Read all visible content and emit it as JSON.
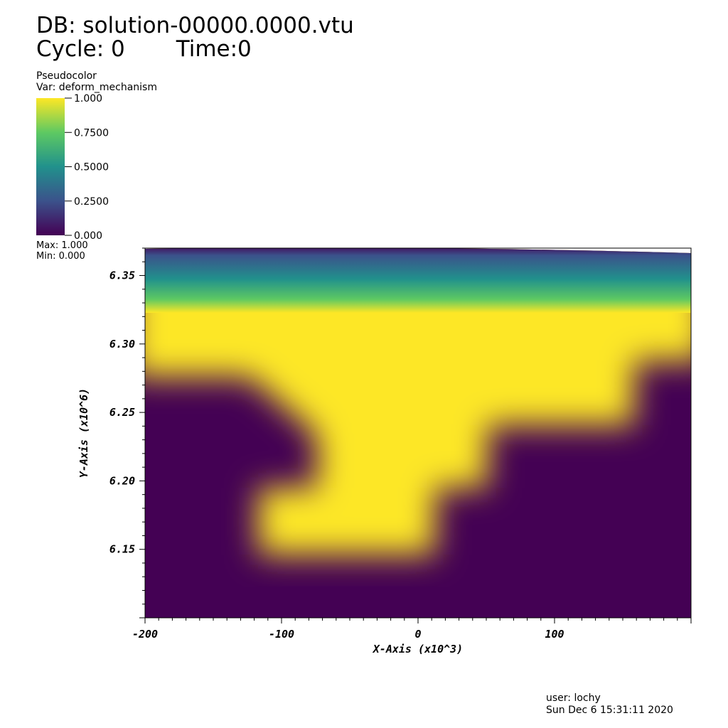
{
  "header": {
    "db_line": "DB: solution-00000.0000.vtu",
    "cycle_label": "Cycle: 0",
    "time_label": "Time:0"
  },
  "legend": {
    "plot_type": "Pseudocolor",
    "var_label": "Var: deform_mechanism",
    "max_label": "Max:  1.000",
    "min_label": "Min:  0.000",
    "ticks": [
      "1.000",
      "0.7500",
      "0.5000",
      "0.2500",
      "0.000"
    ],
    "colormap": [
      "#440154",
      "#3b528b",
      "#21918c",
      "#5ec962",
      "#fde725"
    ]
  },
  "footer": {
    "user": "user: lochy",
    "timestamp": "Sun Dec  6 15:31:11 2020"
  },
  "chart_data": {
    "type": "heatmap",
    "xlabel": "X-Axis (x10^3)",
    "ylabel": "Y-Axis (x10^6)",
    "xlim": [
      -200,
      200
    ],
    "ylim": [
      6.1,
      6.37
    ],
    "x_ticks": [
      "-200",
      "-100",
      "0",
      "100"
    ],
    "x_tick_values": [
      -200,
      -100,
      0,
      100
    ],
    "y_ticks": [
      "6.15",
      "6.20",
      "6.25",
      "6.30",
      "6.35"
    ],
    "y_tick_values": [
      6.15,
      6.2,
      6.25,
      6.3,
      6.35
    ],
    "value_range": [
      0,
      1
    ],
    "colorbar": "viridis"
  }
}
